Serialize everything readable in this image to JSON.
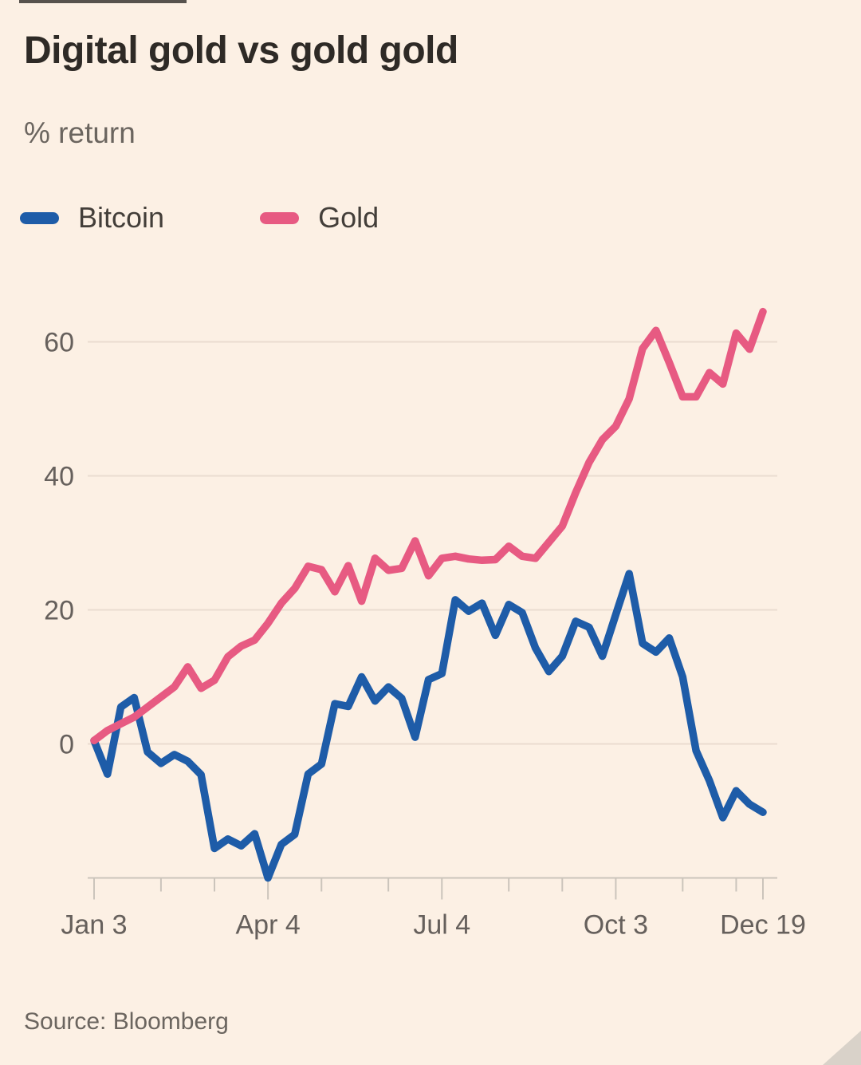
{
  "title": "Digital gold vs gold gold",
  "subtitle": "% return",
  "source": "Source: Bloomberg",
  "legend": {
    "items": [
      {
        "label": "Bitcoin",
        "color": "#1E5CA8"
      },
      {
        "label": "Gold",
        "color": "#E75A82"
      }
    ]
  },
  "colors": {
    "background": "#FCF0E4",
    "gridline": "#EADCD0",
    "axis": "#CBC4BB",
    "tick_label": "#66605C",
    "title_text": "#2E2A26",
    "muted_text": "#6B655F",
    "legend_text": "#433E39",
    "top_bar": "#57524D",
    "corner_triangle": "#D9D2C9",
    "bitcoin": "#1E5CA8",
    "gold": "#E75A82"
  },
  "chart_data": {
    "type": "line",
    "title": "Digital gold vs gold gold",
    "ylabel": "% return",
    "x_range_label": "Jan 3 to Dec 19, weekly",
    "n_points": 51,
    "ylim": [
      -20,
      67
    ],
    "y_ticks": [
      0,
      20,
      40,
      60
    ],
    "grid": "horizontal",
    "legend_position": "top",
    "x_tick_labels": [
      {
        "pos": 0,
        "label": "Jan 3"
      },
      {
        "pos": 13,
        "label": "Apr 4"
      },
      {
        "pos": 26,
        "label": "Jul 4"
      },
      {
        "pos": 39,
        "label": "Oct 3"
      },
      {
        "pos": 50,
        "label": "Dec 19"
      }
    ],
    "minor_tick_positions": [
      5,
      9,
      17,
      22,
      31,
      35,
      44,
      48
    ],
    "series": [
      {
        "name": "Bitcoin",
        "color": "#1E5CA8",
        "values": [
          0.5,
          -4.5,
          5.5,
          6.9,
          -1.2,
          -2.9,
          -1.6,
          -2.6,
          -4.6,
          -15.6,
          -14.2,
          -15.2,
          -13.4,
          -20,
          -15,
          -13.5,
          -4.5,
          -3,
          6,
          5.6,
          10,
          6.4,
          8.5,
          6.8,
          1,
          9.6,
          10.5,
          21.5,
          19.8,
          21,
          16.2,
          20.8,
          19.6,
          14.3,
          10.8,
          13.1,
          18.3,
          17.4,
          13.1,
          19.3,
          25.4,
          15,
          13.7,
          15.8,
          10,
          -1,
          -5.5,
          -11,
          -7,
          -9,
          -10.2
        ]
      },
      {
        "name": "Gold",
        "color": "#E75A82",
        "values": [
          0.5,
          2,
          3,
          4,
          5.5,
          7,
          8.5,
          11.5,
          8.3,
          9.5,
          13,
          14.6,
          15.5,
          18,
          21,
          23.2,
          26.5,
          26,
          22.7,
          26.6,
          21.3,
          27.7,
          25.9,
          26.2,
          30.3,
          25.1,
          27.7,
          28,
          27.6,
          27.4,
          27.5,
          29.5,
          28,
          27.7,
          30.1,
          32.5,
          37.5,
          42,
          45.4,
          47.4,
          51.5,
          59,
          61.7,
          56.9,
          51.8,
          51.8,
          55.4,
          53.7,
          61.3,
          58.9,
          64.5
        ]
      }
    ]
  }
}
